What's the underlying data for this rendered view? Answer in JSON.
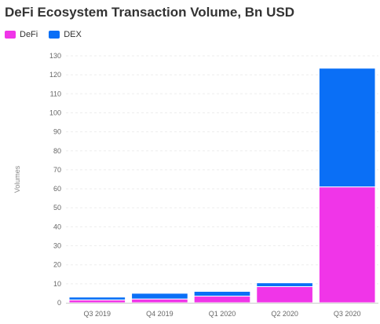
{
  "chart_data": {
    "type": "bar",
    "stacked": true,
    "title": "DeFi Ecosystem Transaction Volume, Bn USD",
    "xlabel": "",
    "ylabel": "Volumes",
    "categories": [
      "Q3 2019",
      "Q4 2019",
      "Q1 2020",
      "Q2 2020",
      "Q3 2020"
    ],
    "series": [
      {
        "name": "DeFi",
        "color": "#f035e8",
        "values": [
          1.5,
          2,
          3.5,
          8.5,
          61
        ]
      },
      {
        "name": "DEX",
        "color": "#0a6ff6",
        "values": [
          1.5,
          3,
          2.5,
          2,
          62.5
        ]
      }
    ],
    "ylim": [
      0,
      130
    ],
    "yticks": [
      0,
      10,
      20,
      30,
      40,
      50,
      60,
      70,
      80,
      90,
      100,
      110,
      120,
      130
    ],
    "grid": true,
    "legend_position": "top-left"
  }
}
